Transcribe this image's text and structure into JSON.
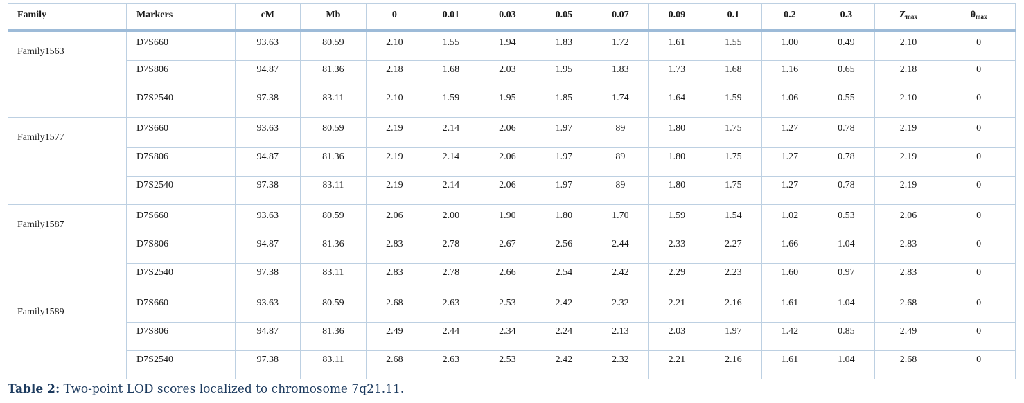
{
  "table": {
    "headers": {
      "family": "Family",
      "markers": "Markers",
      "cm": "cM",
      "mb": "Mb",
      "thetas": [
        "0",
        "0.01",
        "0.03",
        "0.05",
        "0.07",
        "0.09",
        "0.1",
        "0.2",
        "0.3"
      ],
      "zmax_main": "Z",
      "zmax_sub": "max",
      "thetamax_main": "θ",
      "thetamax_sub": "max"
    },
    "families": [
      {
        "name": "Family1563",
        "rows": [
          {
            "marker": "D7S660",
            "cm": "93.63",
            "mb": "80.59",
            "lods": [
              "2.10",
              "1.55",
              "1.94",
              "1.83",
              "1.72",
              "1.61",
              "1.55",
              "1.00",
              "0.49"
            ],
            "zmax": "2.10",
            "thetamax": "0"
          },
          {
            "marker": "D7S806",
            "cm": "94.87",
            "mb": "81.36",
            "lods": [
              "2.18",
              "1.68",
              "2.03",
              "1.95",
              "1.83",
              "1.73",
              "1.68",
              "1.16",
              "0.65"
            ],
            "zmax": "2.18",
            "thetamax": "0"
          },
          {
            "marker": "D7S2540",
            "cm": "97.38",
            "mb": "83.11",
            "lods": [
              "2.10",
              "1.59",
              "1.95",
              "1.85",
              "1.74",
              "1.64",
              "1.59",
              "1.06",
              "0.55"
            ],
            "zmax": "2.10",
            "thetamax": "0"
          }
        ]
      },
      {
        "name": "Family1577",
        "rows": [
          {
            "marker": "D7S660",
            "cm": "93.63",
            "mb": "80.59",
            "lods": [
              "2.19",
              "2.14",
              "2.06",
              "1.97",
              "89",
              "1.80",
              "1.75",
              "1.27",
              "0.78"
            ],
            "zmax": "2.19",
            "thetamax": "0"
          },
          {
            "marker": "D7S806",
            "cm": "94.87",
            "mb": "81.36",
            "lods": [
              "2.19",
              "2.14",
              "2.06",
              "1.97",
              "89",
              "1.80",
              "1.75",
              "1.27",
              "0.78"
            ],
            "zmax": "2.19",
            "thetamax": "0"
          },
          {
            "marker": "D7S2540",
            "cm": "97.38",
            "mb": "83.11",
            "lods": [
              "2.19",
              "2.14",
              "2.06",
              "1.97",
              "89",
              "1.80",
              "1.75",
              "1.27",
              "0.78"
            ],
            "zmax": "2.19",
            "thetamax": "0"
          }
        ]
      },
      {
        "name": "Family1587",
        "rows": [
          {
            "marker": "D7S660",
            "cm": "93.63",
            "mb": "80.59",
            "lods": [
              "2.06",
              "2.00",
              "1.90",
              "1.80",
              "1.70",
              "1.59",
              "1.54",
              "1.02",
              "0.53"
            ],
            "zmax": "2.06",
            "thetamax": "0"
          },
          {
            "marker": "D7S806",
            "cm": "94.87",
            "mb": "81.36",
            "lods": [
              "2.83",
              "2.78",
              "2.67",
              "2.56",
              "2.44",
              "2.33",
              "2.27",
              "1.66",
              "1.04"
            ],
            "zmax": "2.83",
            "thetamax": "0"
          },
          {
            "marker": "D7S2540",
            "cm": "97.38",
            "mb": "83.11",
            "lods": [
              "2.83",
              "2.78",
              "2.66",
              "2.54",
              "2.42",
              "2.29",
              "2.23",
              "1.60",
              "0.97"
            ],
            "zmax": "2.83",
            "thetamax": "0"
          }
        ]
      },
      {
        "name": "Family1589",
        "rows": [
          {
            "marker": "D7S660",
            "cm": "93.63",
            "mb": "80.59",
            "lods": [
              "2.68",
              "2.63",
              "2.53",
              "2.42",
              "2.32",
              "2.21",
              "2.16",
              "1.61",
              "1.04"
            ],
            "zmax": "2.68",
            "thetamax": "0"
          },
          {
            "marker": "D7S806",
            "cm": "94.87",
            "mb": "81.36",
            "lods": [
              "2.49",
              "2.44",
              "2.34",
              "2.24",
              "2.13",
              "2.03",
              "1.97",
              "1.42",
              "0.85"
            ],
            "zmax": "2.49",
            "thetamax": "0"
          },
          {
            "marker": "D7S2540",
            "cm": "97.38",
            "mb": "83.11",
            "lods": [
              "2.68",
              "2.63",
              "2.53",
              "2.42",
              "2.32",
              "2.21",
              "2.16",
              "1.61",
              "1.04"
            ],
            "zmax": "2.68",
            "thetamax": "0"
          }
        ]
      }
    ]
  },
  "caption": {
    "label": "Table 2:",
    "text": " Two-point LOD scores localized to chromosome 7q21.11."
  },
  "colors": {
    "grid_border": "#bdd0e2",
    "header_rule": "#9dbbd8",
    "caption_text": "#1c3a5e"
  }
}
